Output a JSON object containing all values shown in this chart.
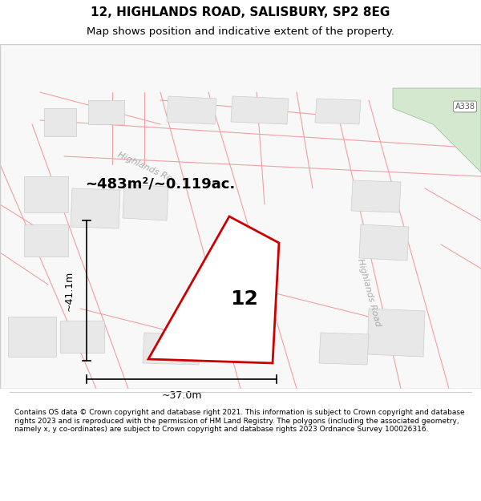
{
  "title_line1": "12, HIGHLANDS ROAD, SALISBURY, SP2 8EG",
  "title_line2": "Map shows position and indicative extent of the property.",
  "footer_text": "Contains OS data © Crown copyright and database right 2021. This information is subject to Crown copyright and database rights 2023 and is reproduced with the permission of HM Land Registry. The polygons (including the associated geometry, namely x, y co-ordinates) are subject to Crown copyright and database rights 2023 Ordnance Survey 100026316.",
  "background_color": "#f5f5f5",
  "map_bg_color": "#ffffff",
  "road_fill_color": "#f0f0f0",
  "plot_outline_color": "#cc0000",
  "plot_fill_color": "#ffffff",
  "green_area_color": "#d4e8d0",
  "road_label_color": "#aaaaaa",
  "dim_line_color": "#000000",
  "building_fill": "#e0e0e0",
  "building_stroke": "#cccccc",
  "road_line_color": "#f0a0a0",
  "area_text": "~483m²/~0.119ac.",
  "number_label": "12",
  "dim_width": "~37.0m",
  "dim_height": "~41.1m",
  "road_label1": "Highlands Ro...",
  "road_label2": "Highlands Road",
  "road_sign": "A338"
}
